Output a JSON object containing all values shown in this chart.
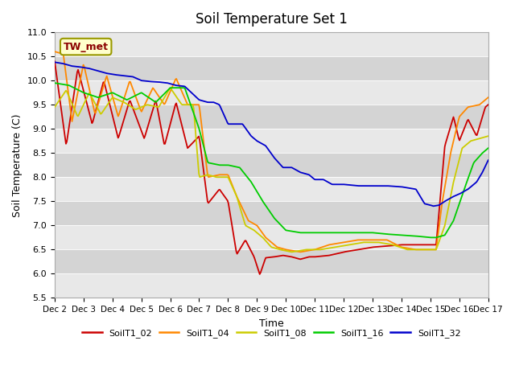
{
  "title": "Soil Temperature Set 1",
  "xlabel": "Time",
  "ylabel": "Soil Temperature (C)",
  "ylim": [
    5.5,
    11.0
  ],
  "xlim": [
    0,
    15
  ],
  "yticks": [
    5.5,
    6.0,
    6.5,
    7.0,
    7.5,
    8.0,
    8.5,
    9.0,
    9.5,
    10.0,
    10.5,
    11.0
  ],
  "xtick_labels": [
    "Dec 2",
    "Dec 3",
    "Dec 4",
    "Dec 5",
    "Dec 6",
    "Dec 7",
    "Dec 8",
    "Dec 9",
    "Dec 10",
    "Dec 11",
    "Dec 12",
    "Dec 13",
    "Dec 14",
    "Dec 15",
    "Dec 16",
    "Dec 17"
  ],
  "background_color": "#e8e8e8",
  "band_color": "#d8d8d8",
  "annotation_text": "TW_met",
  "annotation_color": "#8B0000",
  "series_colors": {
    "SoilT1_02": "#cc0000",
    "SoilT1_04": "#ff8800",
    "SoilT1_08": "#cccc00",
    "SoilT1_16": "#00cc00",
    "SoilT1_32": "#0000cc"
  },
  "legend_labels": [
    "SoilT1_02",
    "SoilT1_04",
    "SoilT1_08",
    "SoilT1_16",
    "SoilT1_32"
  ]
}
